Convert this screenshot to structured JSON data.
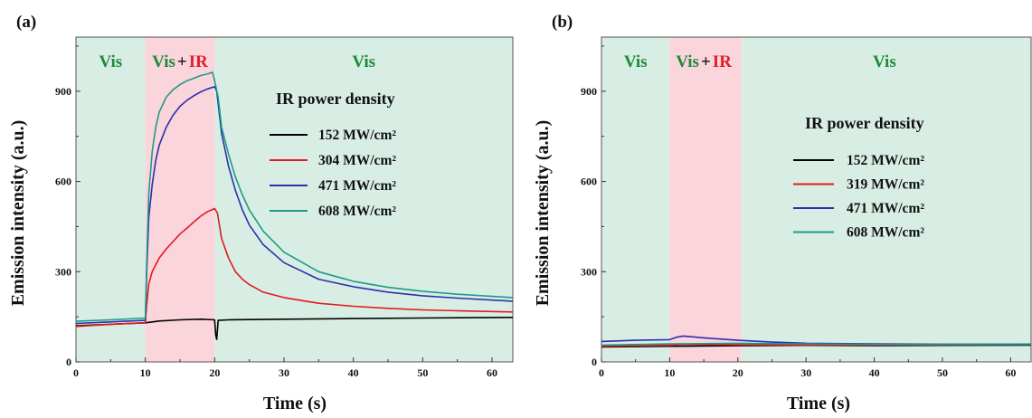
{
  "colors": {
    "vis_region": "#d8eee4",
    "ir_region": "#fbd5dc",
    "vis_text": "#1f8a3a",
    "ir_text": "#e0202a",
    "plus_text": "#111111",
    "series": [
      "#000000",
      "#e31a1c",
      "#2b2fb0",
      "#1e9a87"
    ]
  },
  "chart_data": [
    {
      "panel": "(a)",
      "type": "line",
      "xlabel": "Time (s)",
      "ylabel": "Emission intensity (a.u.)",
      "xlim": [
        0,
        63
      ],
      "ylim": [
        0,
        1080
      ],
      "xticks": [
        0,
        10,
        20,
        30,
        40,
        50,
        60
      ],
      "yticks": [
        0,
        300,
        600,
        900
      ],
      "regions": [
        {
          "label": "Vis",
          "label_x": 5,
          "x0": 0,
          "x1": 10,
          "kind": "vis"
        },
        {
          "label": "Vis",
          "label2": "+",
          "label3": "IR",
          "label_x": 15,
          "x0": 10,
          "x1": 20,
          "kind": "ir"
        },
        {
          "label": "Vis",
          "label_x": 41.5,
          "x0": 20,
          "x1": 63,
          "kind": "vis"
        }
      ],
      "legend_title": "IR power density",
      "legend_location": "right",
      "series": [
        {
          "name": "152 MW/cm²",
          "color_index": 0,
          "points": [
            [
              0,
              120
            ],
            [
              5,
              125
            ],
            [
              10,
              130
            ],
            [
              12,
              136
            ],
            [
              15,
              140
            ],
            [
              18,
              142
            ],
            [
              20,
              140
            ],
            [
              20.15,
              90
            ],
            [
              20.3,
              75
            ],
            [
              20.5,
              138
            ],
            [
              22,
              140
            ],
            [
              30,
              142
            ],
            [
              40,
              144
            ],
            [
              50,
              146
            ],
            [
              63,
              148
            ]
          ]
        },
        {
          "name": "304 MW/cm²",
          "color_index": 1,
          "points": [
            [
              0,
              118
            ],
            [
              5,
              125
            ],
            [
              10,
              130
            ],
            [
              10.2,
              190
            ],
            [
              10.5,
              260
            ],
            [
              11,
              300
            ],
            [
              12,
              345
            ],
            [
              13,
              375
            ],
            [
              14,
              400
            ],
            [
              15,
              425
            ],
            [
              16,
              445
            ],
            [
              17,
              465
            ],
            [
              18,
              485
            ],
            [
              19,
              500
            ],
            [
              20,
              510
            ],
            [
              20.4,
              495
            ],
            [
              21,
              410
            ],
            [
              22,
              345
            ],
            [
              23,
              300
            ],
            [
              24,
              275
            ],
            [
              25,
              257
            ],
            [
              27,
              232
            ],
            [
              30,
              214
            ],
            [
              35,
              195
            ],
            [
              40,
              185
            ],
            [
              45,
              178
            ],
            [
              50,
              173
            ],
            [
              55,
              170
            ],
            [
              63,
              166
            ]
          ]
        },
        {
          "name": "471 MW/cm²",
          "color_index": 2,
          "points": [
            [
              0,
              128
            ],
            [
              5,
              133
            ],
            [
              10,
              138
            ],
            [
              10.2,
              300
            ],
            [
              10.5,
              480
            ],
            [
              11,
              590
            ],
            [
              11.5,
              670
            ],
            [
              12,
              720
            ],
            [
              13,
              780
            ],
            [
              14,
              820
            ],
            [
              15,
              850
            ],
            [
              16,
              870
            ],
            [
              17,
              885
            ],
            [
              18,
              898
            ],
            [
              19,
              908
            ],
            [
              20,
              915
            ],
            [
              20.3,
              900
            ],
            [
              21,
              760
            ],
            [
              22,
              650
            ],
            [
              23,
              570
            ],
            [
              24,
              505
            ],
            [
              25,
              455
            ],
            [
              27,
              390
            ],
            [
              30,
              330
            ],
            [
              35,
              275
            ],
            [
              40,
              250
            ],
            [
              45,
              232
            ],
            [
              50,
              220
            ],
            [
              55,
              212
            ],
            [
              63,
              202
            ]
          ]
        },
        {
          "name": "608 MW/cm²",
          "color_index": 3,
          "points": [
            [
              0,
              135
            ],
            [
              5,
              140
            ],
            [
              10,
              146
            ],
            [
              10.2,
              330
            ],
            [
              10.5,
              560
            ],
            [
              11,
              700
            ],
            [
              11.5,
              780
            ],
            [
              12,
              830
            ],
            [
              13,
              880
            ],
            [
              14,
              905
            ],
            [
              15,
              922
            ],
            [
              16,
              935
            ],
            [
              17,
              943
            ],
            [
              18,
              952
            ],
            [
              19,
              958
            ],
            [
              19.7,
              963
            ],
            [
              20,
              935
            ],
            [
              20.5,
              880
            ],
            [
              21,
              780
            ],
            [
              22,
              690
            ],
            [
              23,
              615
            ],
            [
              24,
              555
            ],
            [
              25,
              505
            ],
            [
              27,
              435
            ],
            [
              30,
              365
            ],
            [
              35,
              300
            ],
            [
              40,
              268
            ],
            [
              45,
              248
            ],
            [
              50,
              235
            ],
            [
              55,
              225
            ],
            [
              63,
              214
            ]
          ]
        }
      ]
    },
    {
      "panel": "(b)",
      "type": "line",
      "xlabel": "Time (s)",
      "ylabel": "Emission intensity (a.u.)",
      "xlim": [
        0,
        63
      ],
      "ylim": [
        0,
        1080
      ],
      "xticks": [
        0,
        10,
        20,
        30,
        40,
        50,
        60
      ],
      "yticks": [
        0,
        300,
        600,
        900
      ],
      "regions": [
        {
          "label": "Vis",
          "label_x": 5,
          "x0": 0,
          "x1": 10,
          "kind": "vis"
        },
        {
          "label": "Vis",
          "label2": "+",
          "label3": "IR",
          "label_x": 15,
          "x0": 10,
          "x1": 20.5,
          "kind": "ir"
        },
        {
          "label": "Vis",
          "label_x": 41.5,
          "x0": 20.5,
          "x1": 63,
          "kind": "vis"
        }
      ],
      "legend_title": "IR power density",
      "legend_location": "right",
      "series": [
        {
          "name": "152 MW/cm²",
          "color_index": 0,
          "points": [
            [
              0,
              50
            ],
            [
              10,
              52
            ],
            [
              20,
              54
            ],
            [
              30,
              55
            ],
            [
              40,
              54
            ],
            [
              50,
              55
            ],
            [
              63,
              56
            ]
          ]
        },
        {
          "name": "319 MW/cm²",
          "color_index": 1,
          "points": [
            [
              0,
              52
            ],
            [
              10,
              55
            ],
            [
              12,
              58
            ],
            [
              20,
              57
            ],
            [
              30,
              56
            ],
            [
              40,
              56
            ],
            [
              50,
              57
            ],
            [
              63,
              58
            ]
          ]
        },
        {
          "name": "471 MW/cm²",
          "color_index": 2,
          "points": [
            [
              0,
              68
            ],
            [
              5,
              72
            ],
            [
              10,
              74
            ],
            [
              11,
              82
            ],
            [
              12,
              86
            ],
            [
              13,
              84
            ],
            [
              15,
              80
            ],
            [
              20,
              72
            ],
            [
              25,
              66
            ],
            [
              30,
              62
            ],
            [
              40,
              60
            ],
            [
              50,
              59
            ],
            [
              63,
              59
            ]
          ]
        },
        {
          "name": "608 MW/cm²",
          "color_index": 3,
          "points": [
            [
              0,
              56
            ],
            [
              10,
              60
            ],
            [
              20,
              62
            ],
            [
              30,
              60
            ],
            [
              40,
              58
            ],
            [
              50,
              58
            ],
            [
              63,
              58
            ]
          ]
        }
      ]
    }
  ]
}
